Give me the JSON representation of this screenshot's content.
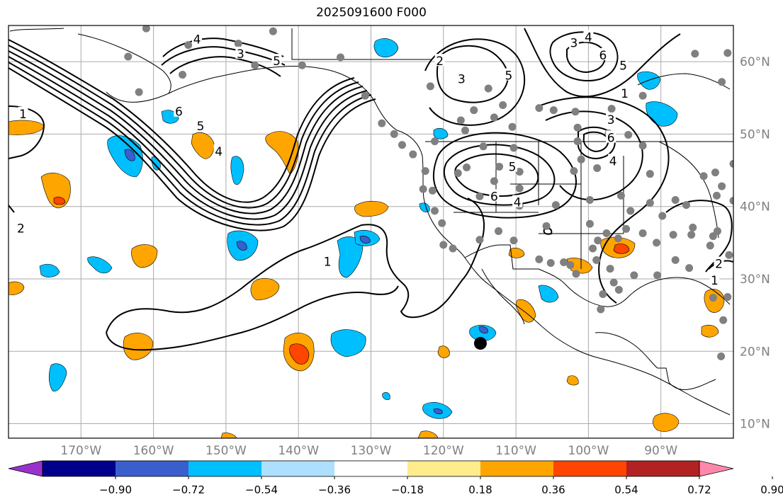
{
  "chart_data": {
    "type": "contour-map",
    "title": "2025091600 F000",
    "lon_ticks": [
      {
        "value": -170,
        "label": "170°W"
      },
      {
        "value": -160,
        "label": "160°W"
      },
      {
        "value": -150,
        "label": "150°W"
      },
      {
        "value": -140,
        "label": "140°W"
      },
      {
        "value": -130,
        "label": "130°W"
      },
      {
        "value": -120,
        "label": "120°W"
      },
      {
        "value": -110,
        "label": "110°W"
      },
      {
        "value": -100,
        "label": "100°W"
      },
      {
        "value": -90,
        "label": "90°W"
      }
    ],
    "lat_ticks": [
      {
        "value": 60,
        "label": "60°N"
      },
      {
        "value": 50,
        "label": "50°N"
      },
      {
        "value": 40,
        "label": "40°N"
      },
      {
        "value": 30,
        "label": "30°N"
      },
      {
        "value": 20,
        "label": "20°N"
      },
      {
        "value": 10,
        "label": "10°N"
      }
    ],
    "lon_range": [
      -180,
      -80
    ],
    "lat_range": [
      8,
      65
    ],
    "colorbar": {
      "ticks": [
        "−0.90",
        "−0.72",
        "−0.54",
        "−0.36",
        "−0.18",
        "0.18",
        "0.36",
        "0.54",
        "0.72",
        "0.90"
      ],
      "colors": [
        "#9932CC",
        "#00008B",
        "#3A5FCD",
        "#00BFFF",
        "#ADDFFF",
        "#FFFFFF",
        "#FFEC8B",
        "#FFA500",
        "#FF4500",
        "#B22222",
        "#FF88AA"
      ]
    },
    "contour_labels": [
      {
        "text": "1",
        "lon": -178,
        "lat": 52.7
      },
      {
        "text": "2",
        "lon": -178.3,
        "lat": 36.9
      },
      {
        "text": "4",
        "lon": -154,
        "lat": 63
      },
      {
        "text": "3",
        "lon": -148,
        "lat": 61
      },
      {
        "text": "5",
        "lon": -143,
        "lat": 60
      },
      {
        "text": "6",
        "lon": -156.5,
        "lat": 53
      },
      {
        "text": "5",
        "lon": -153.5,
        "lat": 51
      },
      {
        "text": "4",
        "lon": -151,
        "lat": 47.5
      },
      {
        "text": "1",
        "lon": -136,
        "lat": 32.3
      },
      {
        "text": "2",
        "lon": -120.5,
        "lat": 60
      },
      {
        "text": "3",
        "lon": -117.5,
        "lat": 57.5
      },
      {
        "text": "5",
        "lon": -111,
        "lat": 58
      },
      {
        "text": "3",
        "lon": -102,
        "lat": 62.5
      },
      {
        "text": "4",
        "lon": -100,
        "lat": 63.3
      },
      {
        "text": "6",
        "lon": -98,
        "lat": 60.8
      },
      {
        "text": "5",
        "lon": -95.2,
        "lat": 59.4
      },
      {
        "text": "1",
        "lon": -95,
        "lat": 55.5
      },
      {
        "text": "3",
        "lon": -96.9,
        "lat": 51.9
      },
      {
        "text": "6",
        "lon": -96.9,
        "lat": 49.4
      },
      {
        "text": "4",
        "lon": -96.6,
        "lat": 46.2
      },
      {
        "text": "5",
        "lon": -110.5,
        "lat": 45.4
      },
      {
        "text": "6",
        "lon": -113,
        "lat": 41.3
      },
      {
        "text": "4",
        "lon": -109.8,
        "lat": 40.5
      },
      {
        "text": "2",
        "lon": -82,
        "lat": 32
      },
      {
        "text": "1",
        "lon": -82.6,
        "lat": 29.7
      }
    ],
    "stations": [
      [
        -161,
        64.6
      ],
      [
        -155.2,
        62.3
      ],
      [
        -163.5,
        60.7
      ],
      [
        -148.3,
        62.5
      ],
      [
        -143.5,
        64.2
      ],
      [
        -146,
        59.5
      ],
      [
        -156,
        58.2
      ],
      [
        -162,
        55.8
      ],
      [
        -134.2,
        60.6
      ],
      [
        -139.5,
        59.5
      ],
      [
        -130.8,
        55.3
      ],
      [
        -128.5,
        51.5
      ],
      [
        -126.8,
        50
      ],
      [
        -125.7,
        48.5
      ],
      [
        -124.2,
        47.2
      ],
      [
        -122.5,
        44.9
      ],
      [
        -122.8,
        42.4
      ],
      [
        -121.2,
        39.4
      ],
      [
        -120.2,
        37.7
      ],
      [
        -118.7,
        34.2
      ],
      [
        -121.8,
        56.6
      ],
      [
        -121.2,
        49
      ],
      [
        -121.5,
        42.2
      ],
      [
        -120,
        34.7
      ],
      [
        -113.8,
        56.3
      ],
      [
        -115.8,
        53.3
      ],
      [
        -117.6,
        51.9
      ],
      [
        -113,
        52.3
      ],
      [
        -117,
        50.5
      ],
      [
        -114.5,
        48.3
      ],
      [
        -116.8,
        45.4
      ],
      [
        -118,
        44.6
      ],
      [
        -110.5,
        51
      ],
      [
        -111.8,
        54
      ],
      [
        -106.8,
        53.6
      ],
      [
        -104.8,
        53.3
      ],
      [
        -101.8,
        53.1
      ],
      [
        -96.8,
        53.5
      ],
      [
        -92.5,
        55.3
      ],
      [
        -101.5,
        50.9
      ],
      [
        -97.2,
        50.1
      ],
      [
        -101.5,
        49
      ],
      [
        -92.5,
        48.4
      ],
      [
        -101,
        46.5
      ],
      [
        -98.8,
        45.3
      ],
      [
        -91.5,
        44.5
      ],
      [
        -102,
        44.9
      ],
      [
        -112.3,
        45.5
      ],
      [
        -113,
        43.5
      ],
      [
        -109.5,
        42.5
      ],
      [
        -115,
        41.4
      ],
      [
        -109.5,
        40.1
      ],
      [
        -104.5,
        40.2
      ],
      [
        -99.8,
        40.9
      ],
      [
        -94.2,
        39.4
      ],
      [
        -91.5,
        40.5
      ],
      [
        -95.5,
        41.5
      ],
      [
        -99.8,
        37.6
      ],
      [
        -94.8,
        36.9
      ],
      [
        -89.8,
        38.7
      ],
      [
        -90.6,
        35
      ],
      [
        -92.5,
        36.3
      ],
      [
        -95.9,
        35.6
      ],
      [
        -97.5,
        36.3
      ],
      [
        -112.4,
        36.6
      ],
      [
        -110.3,
        35.3
      ],
      [
        -115,
        35.4
      ],
      [
        -106.8,
        32.7
      ],
      [
        -105.2,
        32.2
      ],
      [
        -103.4,
        32.3
      ],
      [
        -98.9,
        32.6
      ],
      [
        -99.4,
        34.2
      ],
      [
        -98.7,
        35.3
      ],
      [
        -101.7,
        30.7
      ],
      [
        -102.5,
        31.9
      ],
      [
        -97,
        31.4
      ],
      [
        -96.5,
        29.5
      ],
      [
        -95.8,
        28.5
      ],
      [
        -93.7,
        30.5
      ],
      [
        -90.5,
        30.5
      ],
      [
        -88,
        32.6
      ],
      [
        -86.1,
        31.5
      ],
      [
        -85.6,
        37.1
      ],
      [
        -83.2,
        34.6
      ],
      [
        -82.8,
        35.9
      ],
      [
        -85.8,
        36.1
      ],
      [
        -88.3,
        36.1
      ],
      [
        -86.5,
        40.2
      ],
      [
        -88,
        40.9
      ],
      [
        -82.3,
        41.5
      ],
      [
        -81.6,
        42.8
      ],
      [
        -80,
        40.8
      ],
      [
        -82.2,
        36.6
      ],
      [
        -80.6,
        33.3
      ],
      [
        -80.8,
        27.5
      ],
      [
        -82.8,
        27.4
      ],
      [
        -81.4,
        24.3
      ],
      [
        -98,
        27.9
      ],
      [
        -98.3,
        25.8
      ],
      [
        -81.7,
        19.3
      ],
      [
        -105.8,
        37.3
      ],
      [
        -109.5,
        44.8
      ],
      [
        -110.3,
        48.1
      ],
      [
        -94.5,
        49.9
      ],
      [
        -84.1,
        44.2
      ],
      [
        -82.5,
        44.7
      ],
      [
        -80,
        45.9
      ],
      [
        -79,
        50.5
      ],
      [
        -85.3,
        61.1
      ],
      [
        -80.8,
        61.2
      ],
      [
        -81.6,
        57.2
      ],
      [
        -79.2,
        54.3
      ]
    ],
    "highlight_point": {
      "lon": -114.9,
      "lat": 21.1
    }
  }
}
